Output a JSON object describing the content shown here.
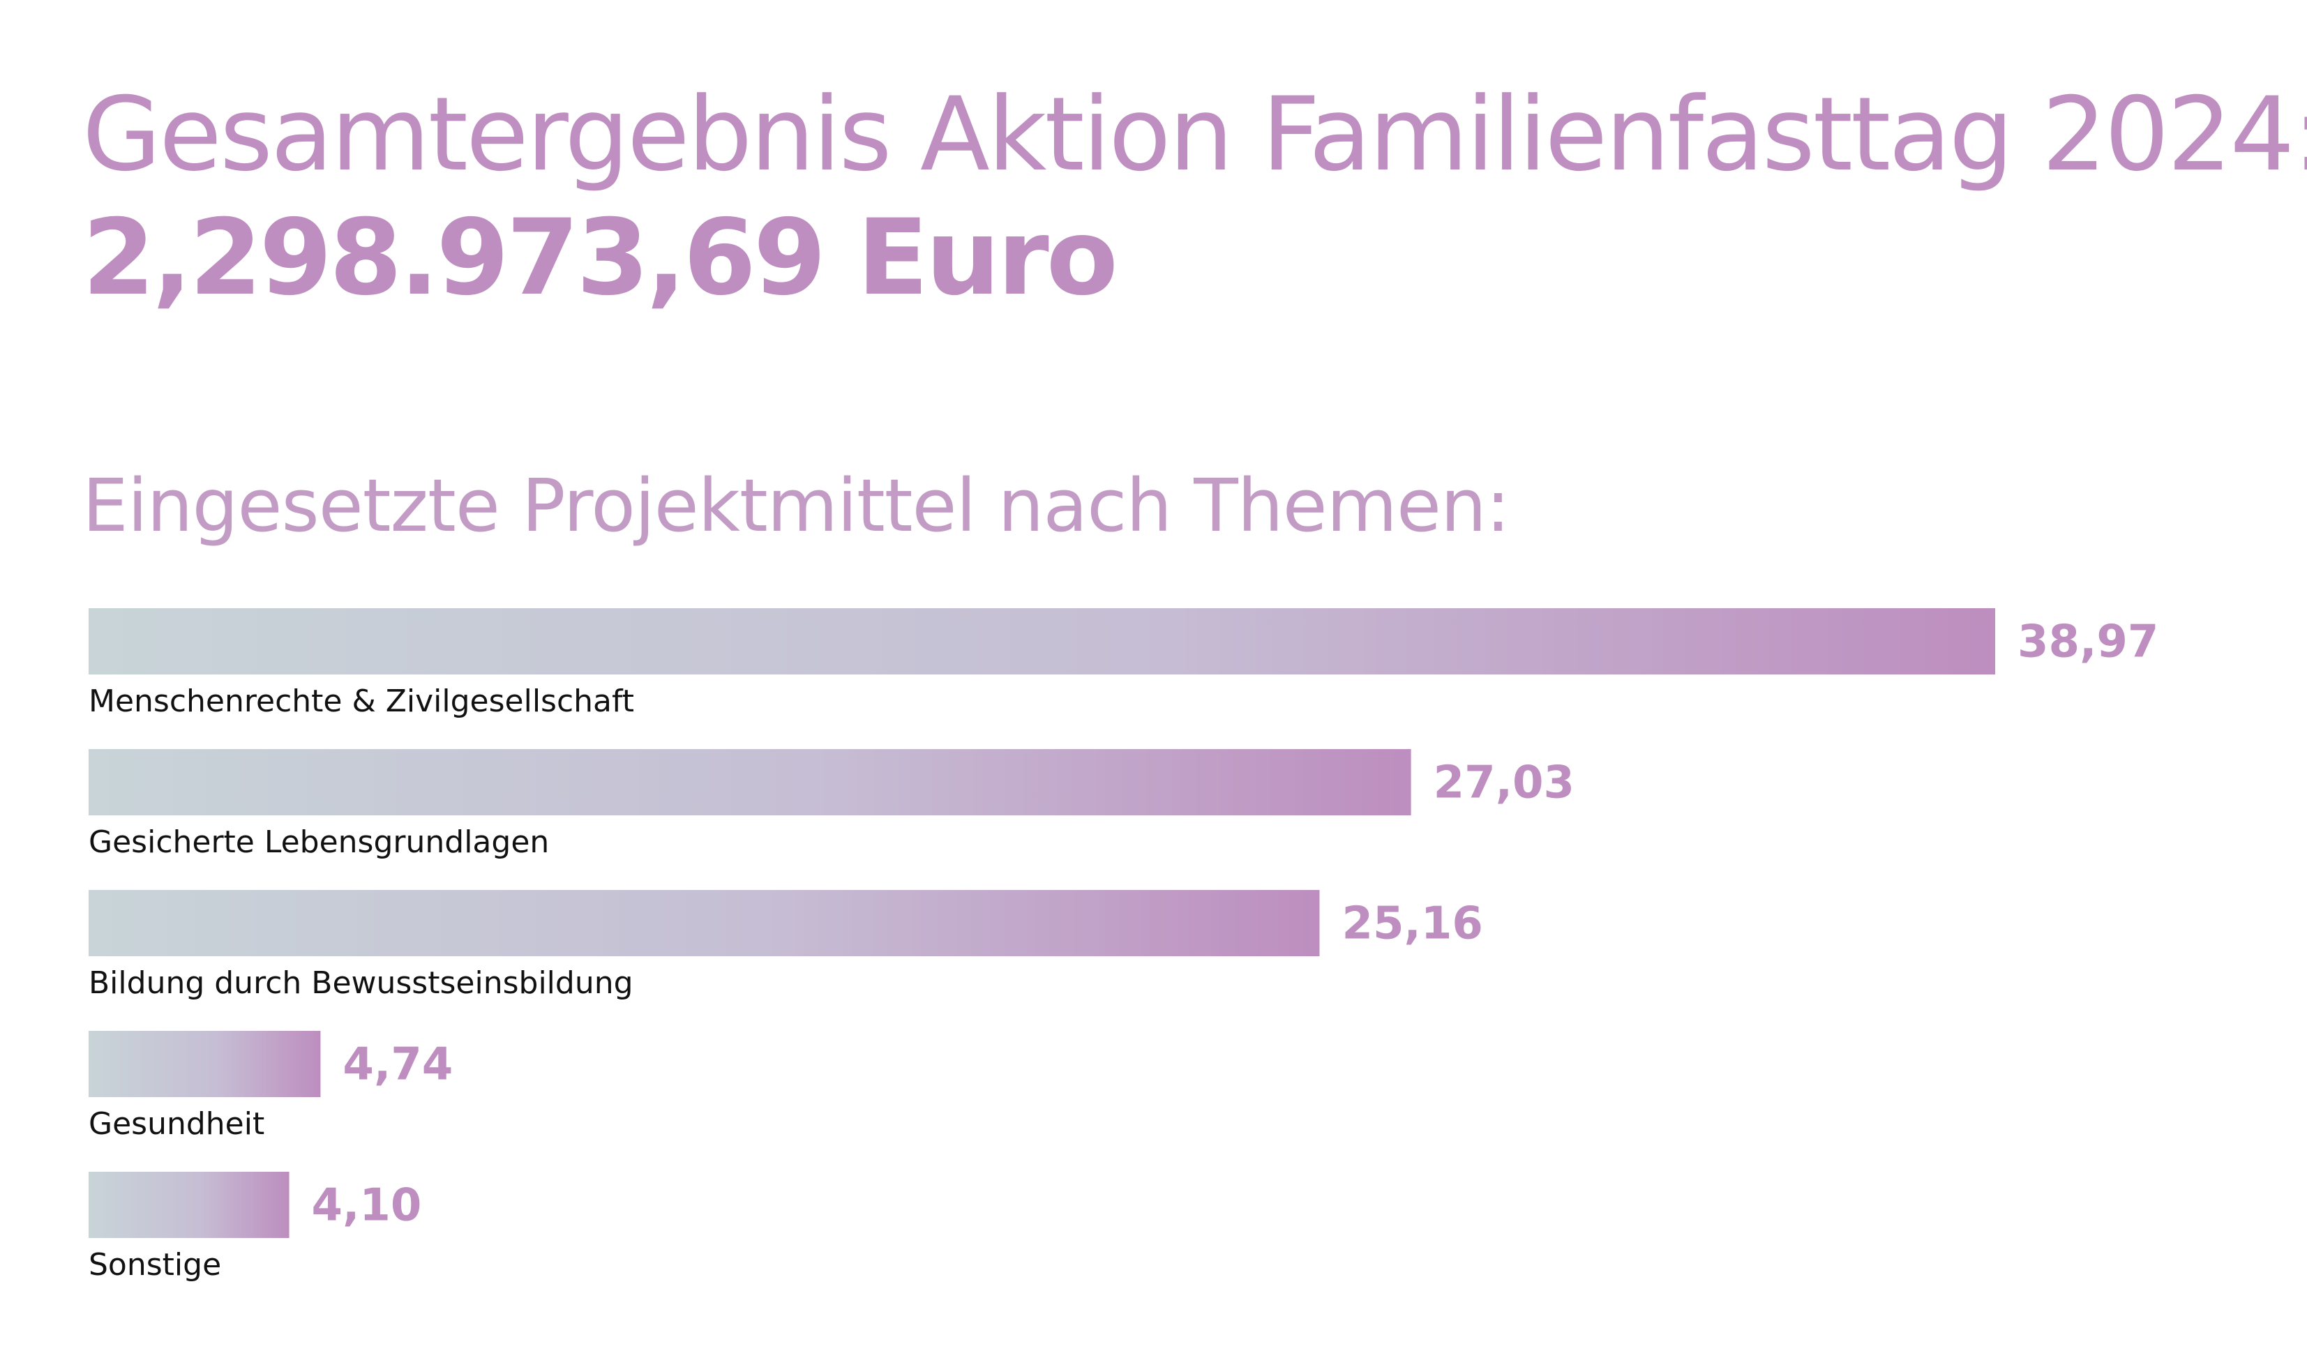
{
  "header": {
    "title": "Gesamtergebnis Aktion Familienfasttag 2024:",
    "total": "2,298.973,69 Euro"
  },
  "section": {
    "title": "Eingesetzte Projektmittel nach Themen:"
  },
  "colors": {
    "accent": "#bd8ebf",
    "bar_start": "#c8d4d8",
    "bar_end": "#bd8ebf",
    "label_text": "#111111"
  },
  "chart_data": {
    "type": "bar",
    "orientation": "horizontal",
    "categories": [
      "Menschenrechte & Zivilgesellschaft",
      "Gesicherte Lebensgrundlagen",
      "Bildung durch Bewusstseinsbildung",
      "Gesundheit",
      "Sonstige"
    ],
    "values": [
      38.97,
      27.03,
      25.16,
      4.74,
      4.1
    ],
    "value_labels": [
      "38,97",
      "27,03",
      "25,16",
      "4,74",
      "4,10"
    ],
    "title": "Eingesetzte Projektmittel nach Themen:",
    "xlabel": "",
    "ylabel": "",
    "xlim": [
      0,
      38.97
    ],
    "grid": false,
    "legend": "none"
  }
}
